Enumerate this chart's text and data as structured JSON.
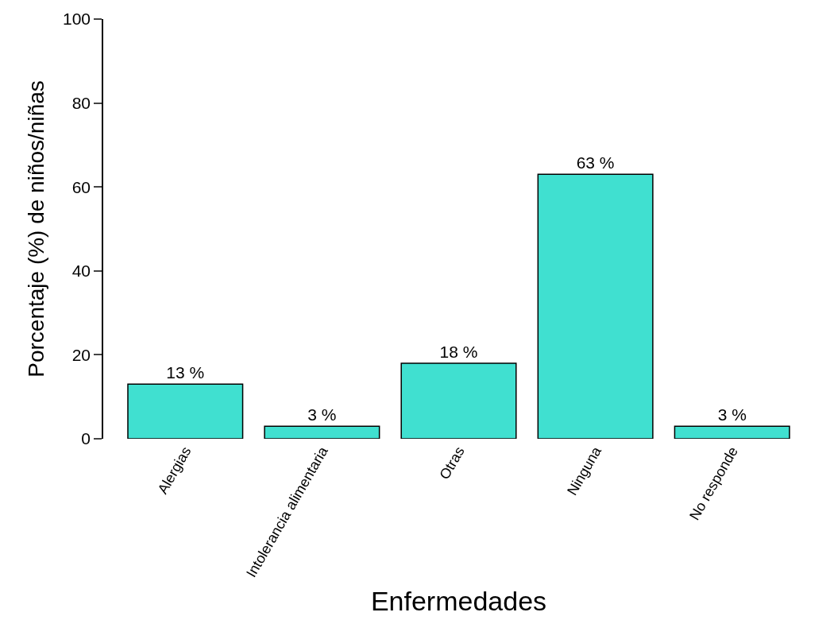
{
  "chart_data": {
    "type": "bar",
    "xlabel": "Enfermedades",
    "ylabel": "Porcentaje (%) de niños/niñas",
    "categories": [
      "Alergias",
      "Intolerancia alimentaria",
      "Otras",
      "Ninguna",
      "No responde"
    ],
    "values": [
      13,
      3,
      18,
      63,
      3
    ],
    "value_labels": [
      "13 %",
      "3 %",
      "18 %",
      "63 %",
      "3 %"
    ],
    "color": "#40e0d0",
    "ylim": [
      0,
      100
    ],
    "yticks": [
      0,
      20,
      40,
      60,
      80,
      100
    ]
  }
}
